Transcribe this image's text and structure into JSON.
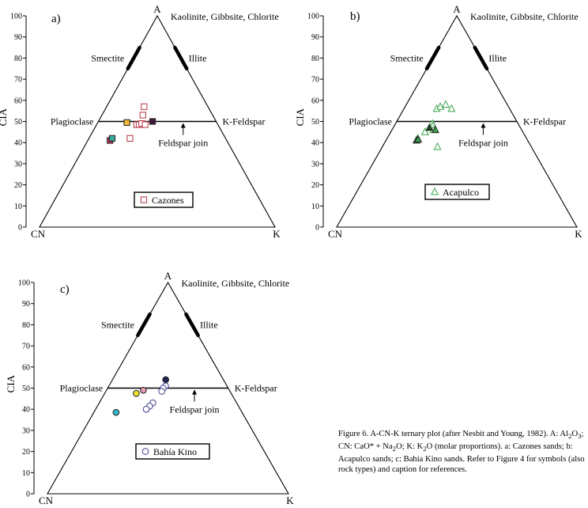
{
  "figure": {
    "caption_parts": [
      "Figure 6. A-CN-K ternary plot (after Nesbit and Young, 1982). A: Al",
      "2",
      "O",
      "3",
      "; CN: CaO* + Na",
      "2",
      "O; K: K",
      "2",
      "O (molar proportions). a: Cazones sands; b: Acapulco sands; c: Bahía Kino sands. Refer to Figure 4 for symbols (also rock types) and caption for references."
    ]
  },
  "colors": {
    "axis": "#000000",
    "cazones_marker": "#b5333f",
    "acapulco_marker": "#3aa24a",
    "bahia_kino_marker": "#3a3a8c",
    "fill_orange": "#f3b73a",
    "fill_magenta": "#c0305f",
    "fill_teal": "#3aa89a",
    "fill_dark": "#401838",
    "fill_cyan": "#32b6c8",
    "fill_yellow": "#f5e22e",
    "fill_pink": "#e79ab3",
    "fill_navy": "#1e2454",
    "fill_darkgreen": "#1b4a1e"
  },
  "chart_data": [
    {
      "type": "scatter",
      "panel": "a)",
      "ylabel": "CIA",
      "ylim": [
        0,
        100
      ],
      "yticks": [
        "0",
        "10",
        "20",
        "30",
        "40",
        "50",
        "60",
        "70",
        "80",
        "90",
        "100"
      ],
      "corners": {
        "top": "A",
        "left": "CN",
        "right": "K"
      },
      "top_label": "Kaolinite, Gibbsite, Chlorite",
      "smectite_label": "Smectite",
      "illite_label": "Illite",
      "plagioclase_label": "Plagioclase",
      "kfeldspar_label": "K-Feldspar",
      "feldspar_join_label": "Feldspar join",
      "legend": "Cazones",
      "marker": "square",
      "series": [
        {
          "name": "Cazones",
          "points": [
            {
              "CIA": 57,
              "K_frac": 0.37,
              "fill": "none"
            },
            {
              "CIA": 53,
              "K_frac": 0.37,
              "fill": "none"
            },
            {
              "CIA": 48.5,
              "K_frac": 0.33,
              "fill": "none"
            },
            {
              "CIA": 48.5,
              "K_frac": 0.35,
              "fill": "none"
            },
            {
              "CIA": 49,
              "K_frac": 0.37,
              "fill": "none"
            },
            {
              "CIA": 48.5,
              "K_frac": 0.4,
              "fill": "none"
            },
            {
              "CIA": 42,
              "K_frac": 0.3,
              "fill": "none"
            },
            {
              "CIA": 49.5,
              "K_frac": 0.245,
              "fill": "#f3b73a"
            },
            {
              "CIA": 41,
              "K_frac": 0.16,
              "fill": "#c0305f"
            },
            {
              "CIA": 42,
              "K_frac": 0.17,
              "fill": "#3aa89a"
            },
            {
              "CIA": 50,
              "K_frac": 0.46,
              "fill": "#401838"
            }
          ]
        }
      ]
    },
    {
      "type": "scatter",
      "panel": "b)",
      "ylabel": "CIA",
      "ylim": [
        0,
        100
      ],
      "yticks": [
        "0",
        "10",
        "20",
        "30",
        "40",
        "50",
        "60",
        "70",
        "80",
        "90",
        "100"
      ],
      "corners": {
        "top": "A",
        "left": "CN",
        "right": "K"
      },
      "top_label": "Kaolinite, Gibbsite, Chlorite",
      "smectite_label": "Smectite",
      "illite_label": "Illite",
      "plagioclase_label": "Plagioclase",
      "kfeldspar_label": "K-Feldspar",
      "feldspar_join_label": "Feldspar join",
      "legend": "Acapulco",
      "marker": "triangle",
      "series": [
        {
          "name": "Acapulco",
          "points": [
            {
              "CIA": 56,
              "K_frac": 0.31,
              "fill": "none"
            },
            {
              "CIA": 57,
              "K_frac": 0.34,
              "fill": "none"
            },
            {
              "CIA": 58,
              "K_frac": 0.39,
              "fill": "none"
            },
            {
              "CIA": 56,
              "K_frac": 0.45,
              "fill": "none"
            },
            {
              "CIA": 49,
              "K_frac": 0.3,
              "fill": "none"
            },
            {
              "CIA": 48,
              "K_frac": 0.31,
              "fill": "none"
            },
            {
              "CIA": 46,
              "K_frac": 0.32,
              "fill": "none"
            },
            {
              "CIA": 45,
              "K_frac": 0.26,
              "fill": "none"
            },
            {
              "CIA": 42,
              "K_frac": 0.22,
              "fill": "none"
            },
            {
              "CIA": 38,
              "K_frac": 0.37,
              "fill": "none"
            },
            {
              "CIA": 41,
              "K_frac": 0.215,
              "fill": "#3aa24a"
            },
            {
              "CIA": 41.5,
              "K_frac": 0.225,
              "fill": "#3aa24a"
            },
            {
              "CIA": 47,
              "K_frac": 0.285,
              "fill": "#1b4a1e"
            },
            {
              "CIA": 46,
              "K_frac": 0.335,
              "fill": "#3aa24a"
            }
          ]
        }
      ]
    },
    {
      "type": "scatter",
      "panel": "c)",
      "ylabel": "CIA",
      "ylim": [
        0,
        100
      ],
      "yticks": [
        "0",
        "10",
        "20",
        "30",
        "40",
        "50",
        "60",
        "70",
        "80",
        "90",
        "100"
      ],
      "corners": {
        "top": "A",
        "left": "CN",
        "right": "K"
      },
      "top_label": "Kaolinite, Gibbsite, Chlorite",
      "smectite_label": "Smectite",
      "illite_label": "Illite",
      "plagioclase_label": "Plagioclase",
      "kfeldspar_label": "K-Feldspar",
      "feldspar_join_label": "Feldspar join",
      "legend": "Bahía Kino",
      "marker": "circle",
      "series": [
        {
          "name": "Bahía Kino",
          "points": [
            {
              "CIA": 54,
              "K_frac": 0.48,
              "fill": "#1e2454"
            },
            {
              "CIA": 51,
              "K_frac": 0.48,
              "fill": "none"
            },
            {
              "CIA": 50,
              "K_frac": 0.46,
              "fill": "none"
            },
            {
              "CIA": 48.5,
              "K_frac": 0.45,
              "fill": "none"
            },
            {
              "CIA": 43,
              "K_frac": 0.39,
              "fill": "none"
            },
            {
              "CIA": 41.5,
              "K_frac": 0.37,
              "fill": "none"
            },
            {
              "CIA": 40,
              "K_frac": 0.35,
              "fill": "none"
            },
            {
              "CIA": 49,
              "K_frac": 0.3,
              "fill": "#e79ab3"
            },
            {
              "CIA": 47.5,
              "K_frac": 0.25,
              "fill": "#f5e22e"
            },
            {
              "CIA": 38.5,
              "K_frac": 0.15,
              "fill": "#32b6c8"
            }
          ]
        }
      ]
    }
  ]
}
